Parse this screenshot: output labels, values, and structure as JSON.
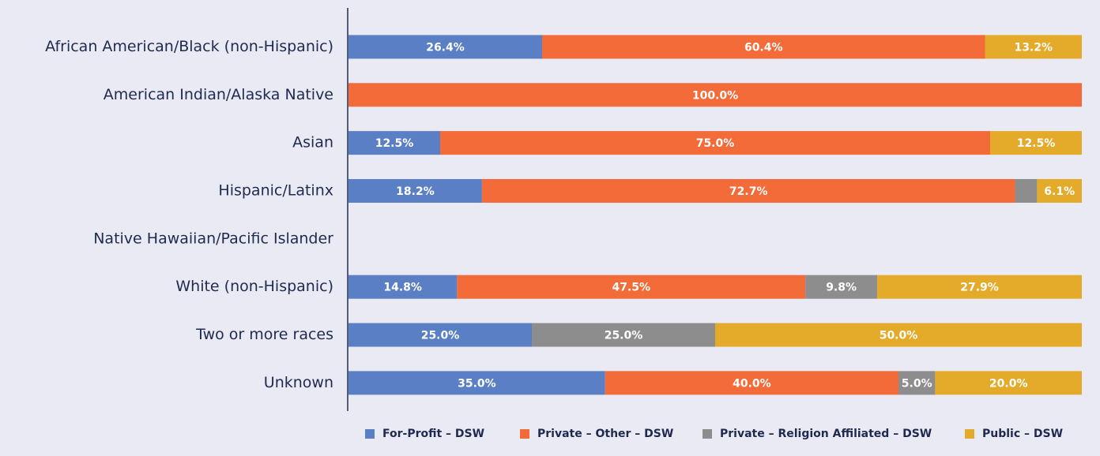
{
  "chart_data": {
    "type": "stacked-bar-horizontal",
    "categories": [
      "African American/Black (non-Hispanic)",
      "American Indian/Alaska Native",
      "Asian",
      "Hispanic/Latinx",
      "Native Hawaiian/Pacific Islander",
      "White (non-Hispanic)",
      "Two or more races",
      "Unknown"
    ],
    "xlim": [
      0,
      100
    ],
    "legend": "bottom",
    "series": [
      {
        "name": "For-Profit – DSW",
        "color": "#5a7fc5",
        "values": [
          26.4,
          null,
          12.5,
          18.2,
          null,
          14.8,
          25.0,
          35.0
        ],
        "value_labels": [
          "26.4%",
          null,
          "12.5%",
          "18.2%",
          null,
          "14.8%",
          "25.0%",
          "35.0%"
        ]
      },
      {
        "name": "Private – Other – DSW",
        "color": "#f26b38",
        "values": [
          60.4,
          100.0,
          75.0,
          72.7,
          null,
          47.5,
          null,
          40.0
        ],
        "value_labels": [
          "60.4%",
          "100.0%",
          "75.0%",
          "72.7%",
          null,
          "47.5%",
          null,
          "40.0%"
        ]
      },
      {
        "name": "Private – Religion Affiliated – DSW",
        "color": "#8d8d8d",
        "values": [
          null,
          null,
          null,
          3.0,
          null,
          9.8,
          25.0,
          5.0
        ],
        "value_labels": [
          null,
          null,
          null,
          null,
          null,
          "9.8%",
          "25.0%",
          "5.0%"
        ]
      },
      {
        "name": "Public – DSW",
        "color": "#e4ab2a",
        "values": [
          13.2,
          null,
          12.5,
          6.1,
          null,
          27.9,
          50.0,
          20.0
        ],
        "value_labels": [
          "13.2%",
          null,
          "12.5%",
          "6.1%",
          null,
          "27.9%",
          "50.0%",
          "20.0%"
        ]
      }
    ]
  }
}
